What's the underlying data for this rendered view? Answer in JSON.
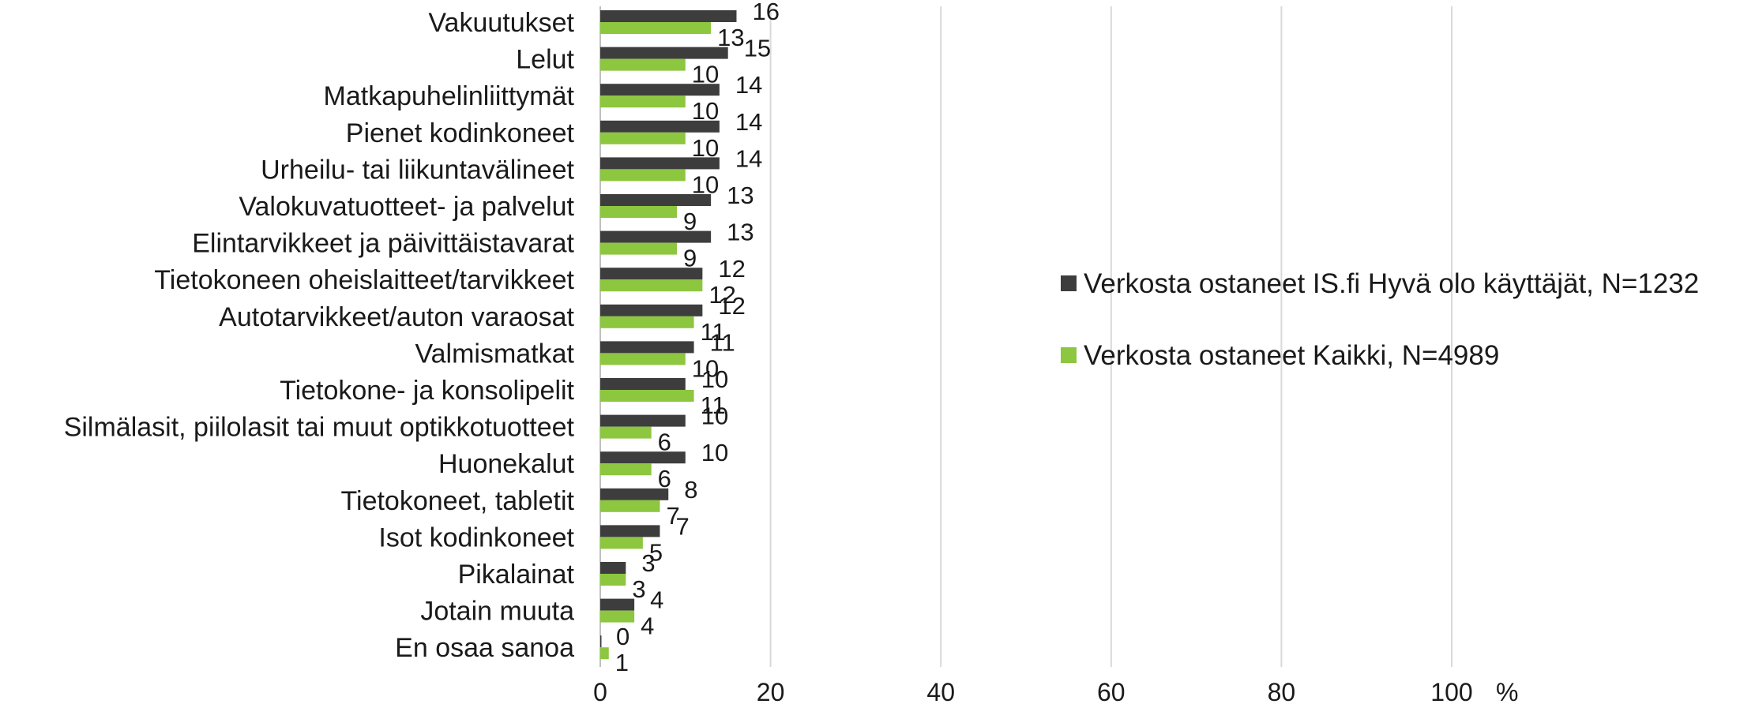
{
  "chart_data": {
    "type": "bar",
    "orientation": "horizontal",
    "categories": [
      "Vakuutukset",
      "Lelut",
      "Matkapuhelinliittymät",
      "Pienet kodinkoneet",
      "Urheilu- tai liikuntavälineet",
      "Valokuvatuotteet- ja palvelut",
      "Elintarvikkeet ja päivittäistavarat",
      "Tietokoneen oheislaitteet/tarvikkeet",
      "Autotarvikkeet/auton varaosat",
      "Valmismatkat",
      "Tietokone- ja konsolipelit",
      "Silmälasit, piilolasit tai muut optikkotuotteet",
      "Huonekalut",
      "Tietokoneet, tabletit",
      "Isot kodinkoneet",
      "Pikalainat",
      "Jotain muuta",
      "En osaa sanoa"
    ],
    "series": [
      {
        "name": "Verkosta ostaneet IS.fi Hyvä olo käyttäjät, N=1232",
        "color": "#3d3d3d",
        "values": [
          16,
          15,
          14,
          14,
          14,
          13,
          13,
          12,
          12,
          11,
          10,
          10,
          10,
          8,
          7,
          3,
          4,
          0
        ]
      },
      {
        "name": "Verkosta ostaneet Kaikki, N=4989",
        "color": "#8dc63f",
        "values": [
          13,
          10,
          10,
          10,
          10,
          9,
          9,
          12,
          11,
          10,
          11,
          6,
          6,
          7,
          5,
          3,
          4,
          1
        ]
      }
    ],
    "xlim": [
      0,
      100
    ],
    "xticks": [
      "0",
      "20",
      "40",
      "60",
      "80",
      "100"
    ],
    "xunit": "%",
    "grid": true,
    "legend_position": "right"
  }
}
